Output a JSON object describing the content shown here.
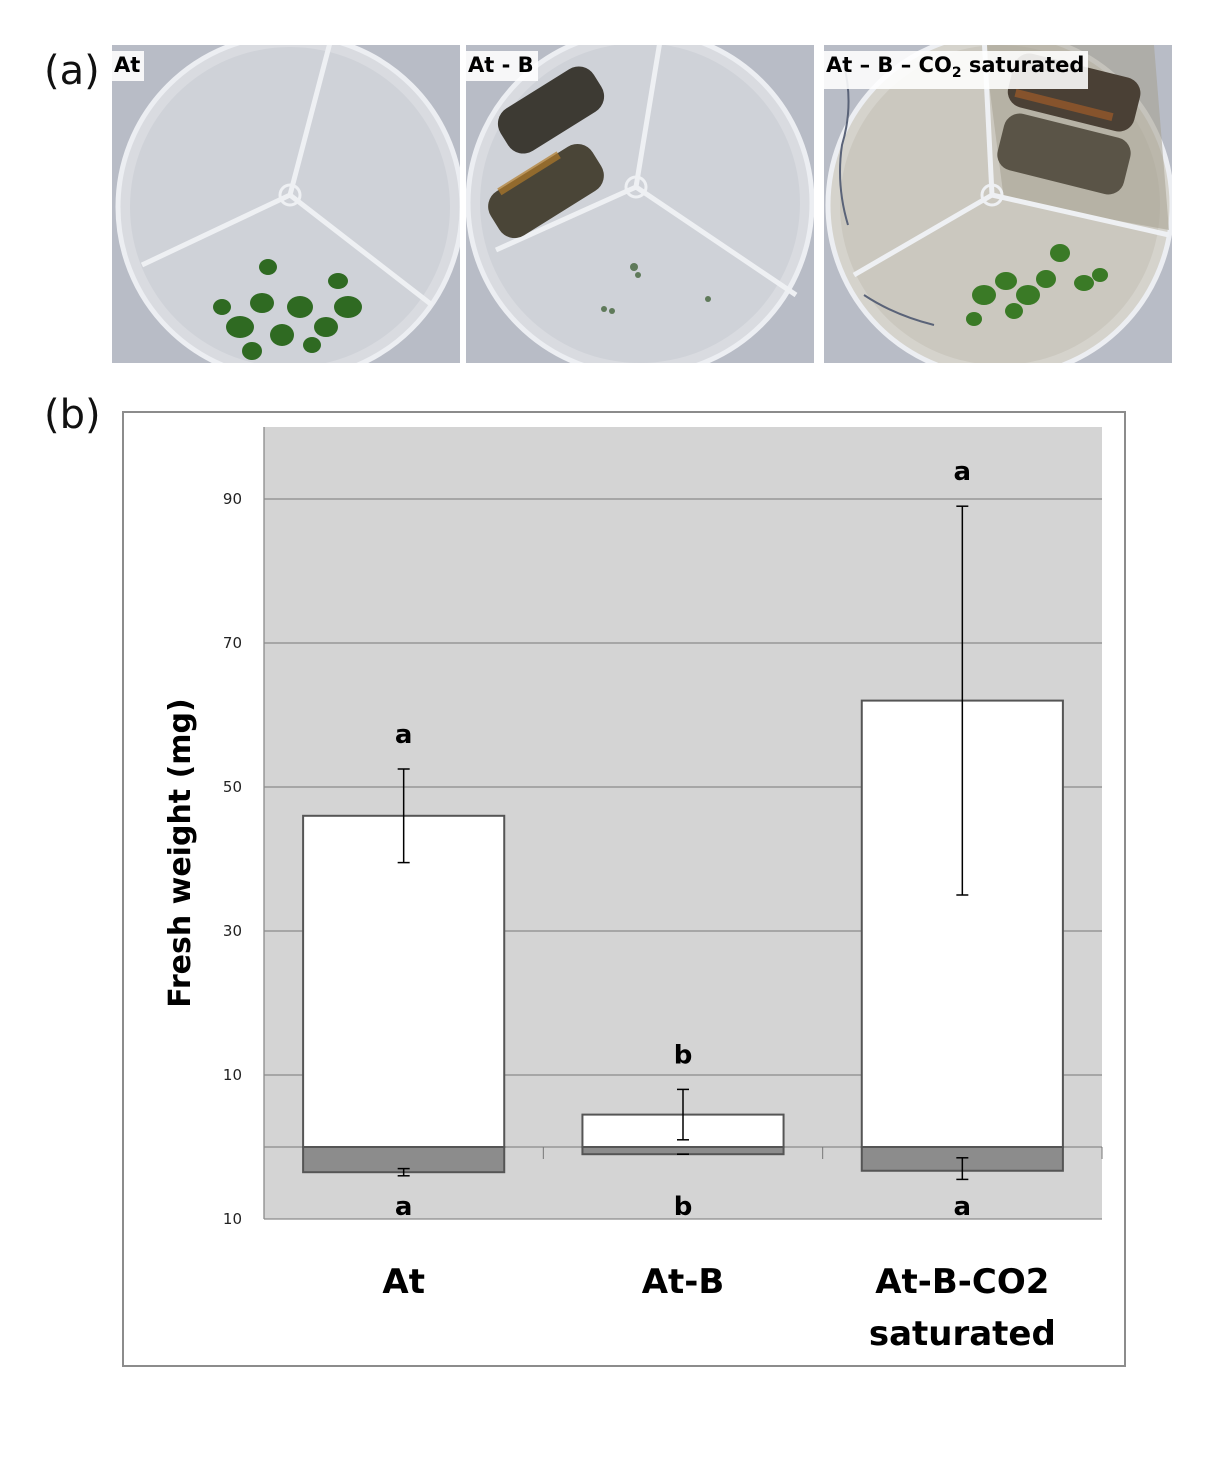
{
  "panel_a": {
    "label": "(a)",
    "photos": [
      {
        "label_text": "At",
        "label_sub": "",
        "label_tail": "",
        "plants": "large",
        "tubes": "none"
      },
      {
        "label_text": "At - B",
        "label_sub": "",
        "label_tail": "",
        "plants": "tiny",
        "tubes": "yes"
      },
      {
        "label_text": "At – B – CO",
        "label_sub": "2",
        "label_tail": " saturated",
        "plants": "large",
        "tubes": "yes"
      }
    ]
  },
  "panel_b": {
    "label": "(b)"
  },
  "chart_data": {
    "type": "bar",
    "ylabel": "Fresh weight (mg)",
    "categories": [
      "At",
      "At-B",
      "At-B-CO2 saturated"
    ],
    "category_lines": [
      [
        "At"
      ],
      [
        "At-B"
      ],
      [
        "At-B-CO2",
        "saturated"
      ]
    ],
    "y_ticks": [
      {
        "value": 90,
        "label": "90"
      },
      {
        "value": 70,
        "label": "70"
      },
      {
        "value": 50,
        "label": "50"
      },
      {
        "value": 30,
        "label": "30"
      },
      {
        "value": 10,
        "label": "10"
      },
      {
        "value": 0,
        "label": ""
      },
      {
        "value": -10,
        "label": "10"
      }
    ],
    "ylim": [
      -10,
      100
    ],
    "grid": true,
    "series": [
      {
        "values": [
          46,
          4.5,
          62
        ],
        "error_low": [
          39.5,
          1,
          35
        ],
        "error_high": [
          52.5,
          8,
          89
        ],
        "significance": [
          "a",
          "b",
          "a"
        ],
        "color": "#ffffff"
      },
      {
        "values": [
          -3.5,
          -1,
          -3.3
        ],
        "error_low": [
          -4,
          -1,
          -4.5
        ],
        "error_high": [
          -3,
          -1,
          -1.5
        ],
        "significance": [
          "a",
          "b",
          "a"
        ],
        "color": "#8c8c8c"
      }
    ],
    "plot_background": "#d4d4d4",
    "gridline_color": "#8a8a8a"
  }
}
